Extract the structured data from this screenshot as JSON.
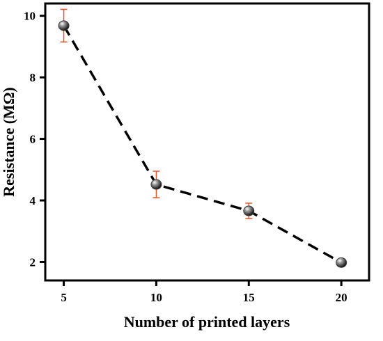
{
  "chart_data": {
    "type": "line",
    "x_label": "Number of printed layers",
    "y_label": "Resistance (MΩ)",
    "x": [
      5,
      10,
      15,
      20
    ],
    "values": [
      9.68,
      4.52,
      3.66,
      1.98
    ],
    "errors": [
      0.53,
      0.43,
      0.25,
      0.05
    ],
    "xlim": [
      4,
      21.5
    ],
    "ylim": [
      1.4,
      10.4
    ],
    "xticks": [
      5,
      10,
      15,
      20
    ],
    "yticks": [
      2,
      4,
      6,
      8,
      10
    ],
    "line_color": "#000000",
    "line_style": "dashed",
    "marker_color": "#3a3a3a",
    "error_color": "#e8552a"
  }
}
